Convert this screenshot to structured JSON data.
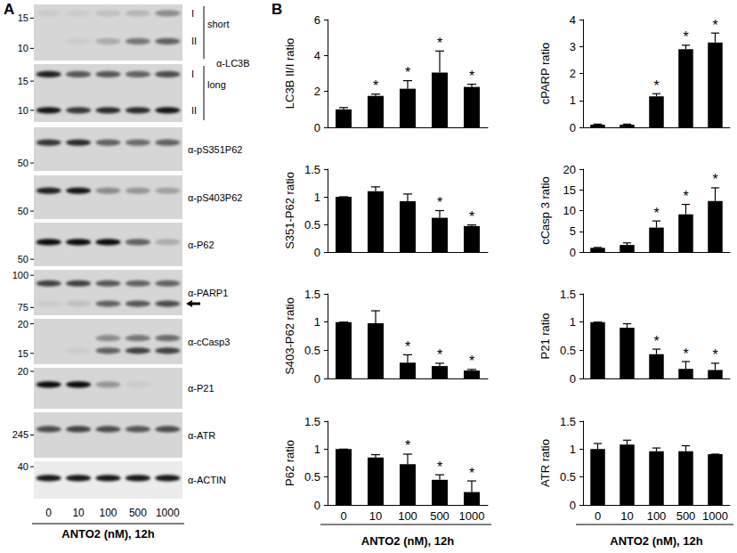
{
  "panel_labels": [
    "A",
    "B"
  ],
  "blot": {
    "lanes": [
      "0",
      "10",
      "100",
      "500",
      "1000"
    ],
    "lane_title": "ANTO2 (nM), 12h",
    "groups": [
      {
        "antibody": "α-LC3B",
        "rows": [
          {
            "tag": "short",
            "kda_range": [
              18,
              8.5
            ],
            "markers": [
              15,
              10
            ],
            "bands": [
              {
                "kda": 16,
                "label": "I",
                "intensity": [
                  0.05,
                  0.05,
                  0.1,
                  0.15,
                  0.35
                ]
              },
              {
                "kda": 11,
                "label": "II",
                "intensity": [
                  0,
                  0.05,
                  0.2,
                  0.45,
                  0.55
                ]
              }
            ]
          },
          {
            "tag": "long",
            "kda_range": [
              19,
              8.5
            ],
            "markers": [
              15,
              10
            ],
            "bands": [
              {
                "kda": 16.5,
                "label": "I",
                "intensity": [
                  0.85,
                  0.6,
                  0.6,
                  0.55,
                  0.65
                ]
              },
              {
                "kda": 10,
                "label": "II",
                "intensity": [
                  0.9,
                  0.75,
                  0.8,
                  0.8,
                  0.9
                ]
              }
            ]
          }
        ]
      },
      {
        "antibody": "α-pS351P62",
        "rows": [
          {
            "kda_range": [
              60,
              48
            ],
            "markers": [
              50
            ],
            "bands": [
              {
                "kda": 55.5,
                "intensity": [
                  0.75,
                  0.8,
                  0.55,
                  0.5,
                  0.55
                ]
              }
            ]
          }
        ]
      },
      {
        "antibody": "α-pS403P62",
        "rows": [
          {
            "kda_range": [
              60,
              48
            ],
            "markers": [
              50
            ],
            "bands": [
              {
                "kda": 55.5,
                "intensity": [
                  0.85,
                  0.9,
                  0.35,
                  0.3,
                  0.25
                ]
              }
            ]
          }
        ]
      },
      {
        "antibody": "α-P62",
        "rows": [
          {
            "kda_range": [
              62,
              48
            ],
            "markers": [
              50
            ],
            "bands": [
              {
                "kda": 55.3,
                "intensity": [
                  0.95,
                  0.95,
                  0.95,
                  0.55,
                  0.2
                ]
              }
            ]
          }
        ]
      },
      {
        "antibody": "α-PARP1",
        "rows": [
          {
            "kda_range": [
              105,
              70
            ],
            "markers": [
              100,
              75
            ],
            "bands": [
              {
                "kda": 93,
                "intensity": [
                  0.7,
                  0.7,
                  0.6,
                  0.55,
                  0.55
                ]
              },
              {
                "kda": 77.6,
                "marker": "arrow",
                "intensity": [
                  0.05,
                  0.1,
                  0.55,
                  0.6,
                  0.65
                ]
              }
            ]
          }
        ]
      },
      {
        "antibody": "α-cCasp3",
        "rows": [
          {
            "kda_range": [
              21,
              13.5
            ],
            "markers": [
              20,
              15
            ],
            "bands": [
              {
                "kda": 17.4,
                "intensity": [
                  0,
                  0,
                  0.35,
                  0.45,
                  0.5
                ]
              },
              {
                "kda": 15.4,
                "intensity": [
                  0,
                  0.05,
                  0.55,
                  0.7,
                  0.7
                ]
              }
            ]
          }
        ]
      },
      {
        "antibody": "α-P21",
        "rows": [
          {
            "kda_range": [
              21,
              12
            ],
            "markers": [
              20
            ],
            "bands": [
              {
                "kda": 16.7,
                "intensity": [
                  0.95,
                  0.95,
                  0.3,
                  0.05,
                  0
                ]
              }
            ]
          }
        ]
      },
      {
        "antibody": "α-ATR",
        "rows": [
          {
            "kda_range": [
              300,
              200
            ],
            "markers": [
              245
            ],
            "bands": [
              {
                "kda": 258,
                "intensity": [
                  0.65,
                  0.7,
                  0.65,
                  0.6,
                  0.65
                ]
              }
            ]
          }
        ]
      },
      {
        "antibody": "α-ACTIN",
        "rows": [
          {
            "kda_range": [
              42,
              30
            ],
            "markers": [
              40
            ],
            "bands": [
              {
                "kda": 36.1,
                "intensity": [
                  0.9,
                  0.9,
                  0.9,
                  0.9,
                  0.9
                ]
              }
            ]
          }
        ]
      }
    ]
  },
  "chart_data": [
    {
      "type": "bar",
      "ylabel": "LC3B II/I ratio",
      "categories": [
        "0",
        "10",
        "100",
        "500",
        "1000"
      ],
      "values": [
        1.0,
        1.75,
        2.15,
        3.05,
        2.25
      ],
      "errors": [
        0.1,
        0.1,
        0.45,
        1.2,
        0.15
      ],
      "color": "#000000",
      "ylim": [
        0,
        6
      ],
      "yticks": [
        0,
        2,
        4,
        6
      ],
      "grid": false,
      "tick_labels": "y",
      "annotations": [
        {
          "category": "10",
          "text": "*"
        },
        {
          "category": "100",
          "text": "*"
        },
        {
          "category": "500",
          "text": "*"
        },
        {
          "category": "1000",
          "text": "*"
        }
      ]
    },
    {
      "type": "bar",
      "ylabel": "S351-P62 ratio",
      "categories": [
        "0",
        "10",
        "100",
        "500",
        "1000"
      ],
      "values": [
        1.0,
        1.1,
        0.92,
        0.62,
        0.47
      ],
      "errors": [
        0,
        0.08,
        0.13,
        0.13,
        0.02
      ],
      "color": "#000000",
      "ylim": [
        0,
        1.5
      ],
      "yticks": [
        0,
        0.5,
        1,
        1.5
      ],
      "grid": false,
      "tick_labels": "y",
      "annotations": [
        {
          "category": "500",
          "text": "*"
        },
        {
          "category": "1000",
          "text": "*"
        }
      ]
    },
    {
      "type": "bar",
      "ylabel": "S403-P62 ratio",
      "categories": [
        "0",
        "10",
        "100",
        "500",
        "1000"
      ],
      "values": [
        1.0,
        0.98,
        0.28,
        0.22,
        0.14
      ],
      "errors": [
        0,
        0.22,
        0.14,
        0.05,
        0.02
      ],
      "color": "#000000",
      "ylim": [
        0,
        1.5
      ],
      "yticks": [
        0,
        0.5,
        1,
        1.5
      ],
      "grid": false,
      "tick_labels": "y",
      "annotations": [
        {
          "category": "100",
          "text": "*"
        },
        {
          "category": "500",
          "text": "*"
        },
        {
          "category": "1000",
          "text": "*"
        }
      ]
    },
    {
      "type": "bar",
      "ylabel": "P62 ratio",
      "xlabel": "ANTO2 (nM), 12h",
      "categories": [
        "0",
        "10",
        "100",
        "500",
        "1000"
      ],
      "values": [
        1.0,
        0.85,
        0.73,
        0.45,
        0.23
      ],
      "errors": [
        0,
        0.05,
        0.18,
        0.09,
        0.2
      ],
      "color": "#000000",
      "ylim": [
        0,
        1.5
      ],
      "yticks": [
        0,
        0.5,
        1,
        1.5
      ],
      "grid": false,
      "annotations": [
        {
          "category": "100",
          "text": "*"
        },
        {
          "category": "500",
          "text": "*"
        },
        {
          "category": "1000",
          "text": "*"
        }
      ]
    },
    {
      "type": "bar",
      "ylabel": "cPARP ratio",
      "categories": [
        "0",
        "10",
        "100",
        "500",
        "1000"
      ],
      "values": [
        0.1,
        0.1,
        1.15,
        2.9,
        3.15
      ],
      "errors": [
        0.02,
        0.02,
        0.1,
        0.15,
        0.35
      ],
      "color": "#000000",
      "ylim": [
        0,
        4
      ],
      "yticks": [
        0,
        1,
        2,
        3,
        4
      ],
      "grid": false,
      "tick_labels": "y",
      "annotations": [
        {
          "category": "100",
          "text": "*"
        },
        {
          "category": "500",
          "text": "*"
        },
        {
          "category": "1000",
          "text": "*"
        }
      ]
    },
    {
      "type": "bar",
      "ylabel": "cCasp 3 ratio",
      "categories": [
        "0",
        "10",
        "100",
        "500",
        "1000"
      ],
      "values": [
        1.0,
        1.7,
        5.9,
        9.1,
        12.3
      ],
      "errors": [
        0.1,
        0.5,
        1.6,
        2.4,
        3.2
      ],
      "color": "#000000",
      "ylim": [
        0,
        20
      ],
      "yticks": [
        0,
        5,
        10,
        15,
        20
      ],
      "grid": false,
      "tick_labels": "y",
      "annotations": [
        {
          "category": "100",
          "text": "*"
        },
        {
          "category": "500",
          "text": "*"
        },
        {
          "category": "1000",
          "text": "*"
        }
      ]
    },
    {
      "type": "bar",
      "ylabel": "P21 ratio",
      "categories": [
        "0",
        "10",
        "100",
        "500",
        "1000"
      ],
      "values": [
        1.0,
        0.9,
        0.43,
        0.17,
        0.15
      ],
      "errors": [
        0,
        0.07,
        0.09,
        0.13,
        0.12
      ],
      "color": "#000000",
      "ylim": [
        0,
        1.5
      ],
      "yticks": [
        0,
        0.5,
        1,
        1.5
      ],
      "grid": false,
      "tick_labels": "y",
      "annotations": [
        {
          "category": "100",
          "text": "*"
        },
        {
          "category": "500",
          "text": "*"
        },
        {
          "category": "1000",
          "text": "*"
        }
      ]
    },
    {
      "type": "bar",
      "ylabel": "ATR ratio",
      "xlabel": "ANTO2 (nM), 12h",
      "categories": [
        "0",
        "10",
        "100",
        "500",
        "1000"
      ],
      "values": [
        1.0,
        1.08,
        0.96,
        0.96,
        0.91
      ],
      "errors": [
        0.1,
        0.08,
        0.06,
        0.1,
        0
      ],
      "color": "#000000",
      "ylim": [
        0,
        1.5
      ],
      "yticks": [
        0,
        0.5,
        1,
        1.5
      ],
      "grid": false,
      "annotations": []
    }
  ]
}
